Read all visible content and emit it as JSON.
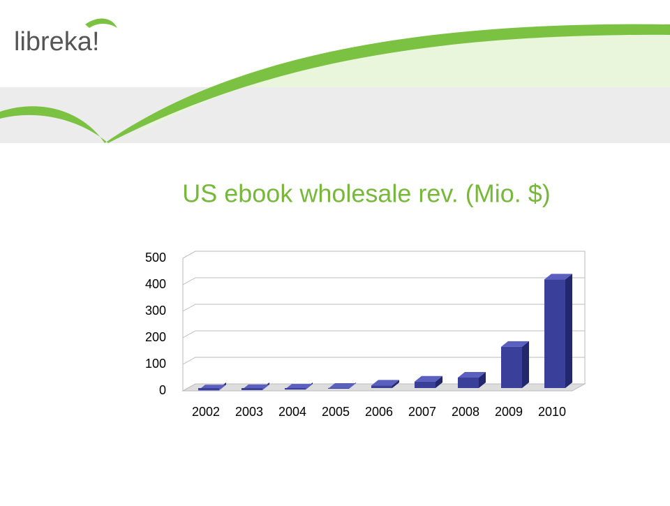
{
  "logo": "libreka!",
  "chart_data": {
    "type": "bar3d",
    "title": "US ebook wholesale rev. (Mio. $)",
    "categories": [
      "2002",
      "2003",
      "2004",
      "2005",
      "2006",
      "2007",
      "2008",
      "2009",
      "2010"
    ],
    "values": [
      2,
      3,
      5,
      8,
      20,
      35,
      50,
      166,
      420
    ],
    "color": "#3a3f9a",
    "ylim": [
      0,
      500
    ],
    "yticks": [
      0,
      100,
      200,
      300,
      400,
      500
    ],
    "grid": true
  }
}
